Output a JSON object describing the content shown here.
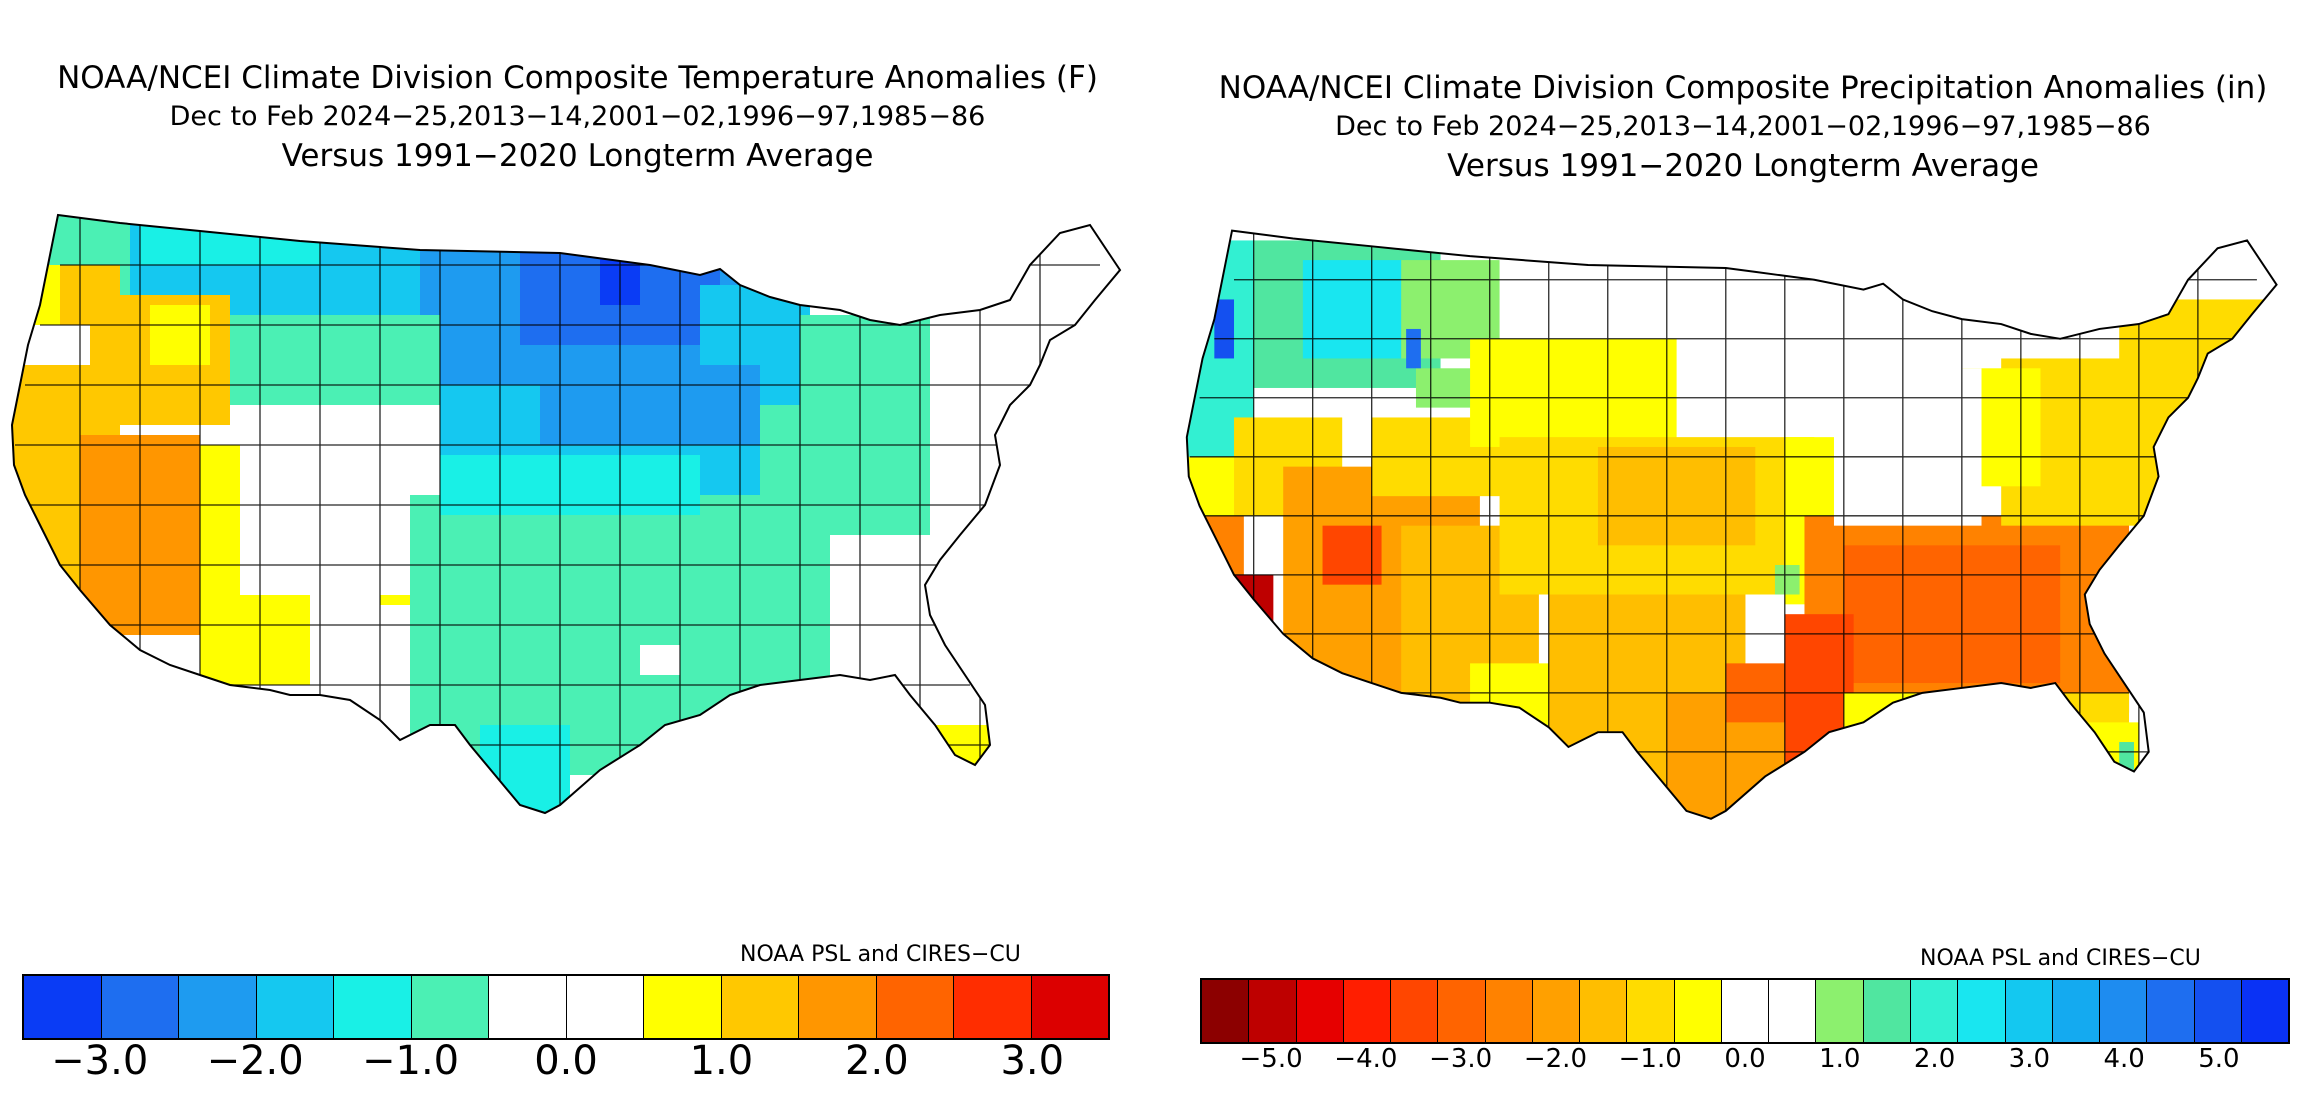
{
  "temperature_panel": {
    "title_line1": "NOAA/NCEI Climate Division Composite Temperature Anomalies (F)",
    "title_line2": "Dec to Feb  2024−25,2013−14,2001−02,1996−97,1985−86",
    "title_line3": "Versus 1991−2020 Longterm Average",
    "credit": "NOAA PSL and CIRES−CU",
    "colorbar": {
      "colors": [
        "#0a3cf5",
        "#1e6ef0",
        "#1e9bf0",
        "#15c8f0",
        "#19f0e6",
        "#4bf0b4",
        "#ffffff",
        "#ffffff",
        "#ffff00",
        "#ffc800",
        "#ff9600",
        "#ff6400",
        "#ff2d00",
        "#dc0000"
      ],
      "tick_labels": [
        "−3.0",
        "−2.0",
        "−1.0",
        "0.0",
        "1.0",
        "2.0",
        "3.0"
      ]
    }
  },
  "precipitation_panel": {
    "title_line1": "NOAA/NCEI Climate Division Composite Precipitation Anomalies (in)",
    "title_line2": "Dec to Feb  2024−25,2013−14,2001−02,1996−97,1985−86",
    "title_line3": "Versus 1991−2020 Longterm Average",
    "credit": "NOAA PSL and CIRES−CU",
    "colorbar": {
      "colors": [
        "#8c0000",
        "#be0000",
        "#e60000",
        "#ff1e00",
        "#ff4600",
        "#ff6400",
        "#ff8200",
        "#ffa000",
        "#ffbe00",
        "#ffdc00",
        "#ffff00",
        "#ffffff",
        "#ffffff",
        "#8cf06e",
        "#50e6a0",
        "#32f0d2",
        "#19e6f0",
        "#14c8f0",
        "#14aaf0",
        "#1e8cf0",
        "#1e6ef0",
        "#1450f0",
        "#0a32f5"
      ],
      "tick_labels": [
        "−5.0",
        "−4.0",
        "−3.0",
        "−2.0",
        "−1.0",
        "0.0",
        "1.0",
        "2.0",
        "3.0",
        "4.0",
        "5.0"
      ]
    }
  }
}
